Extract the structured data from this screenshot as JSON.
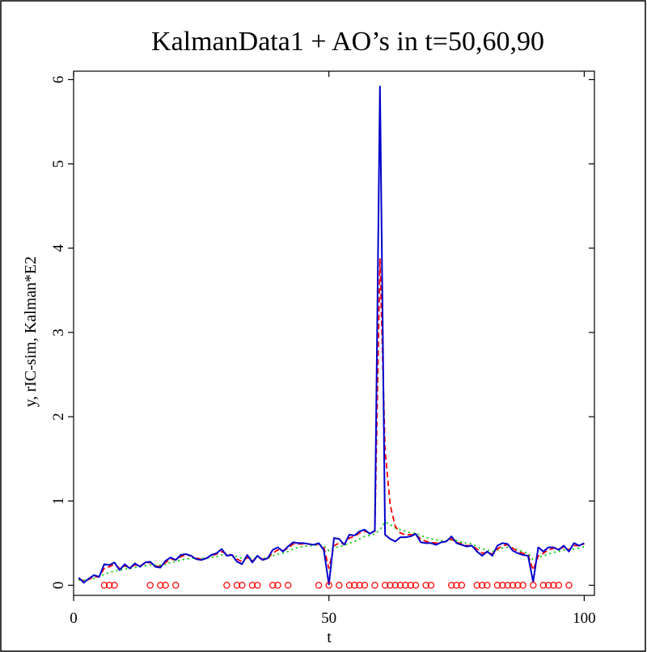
{
  "chart_data": {
    "type": "line",
    "title": "KalmanData1 + AO’s in t=50,60,90",
    "xlabel": "t",
    "ylabel": "y, rIC-sim, Kalman*E2",
    "xlim": [
      0,
      102
    ],
    "ylim": [
      -0.12,
      6.1
    ],
    "xticks": [
      0,
      50,
      100
    ],
    "yticks": [
      0,
      1,
      2,
      3,
      4,
      5,
      6
    ],
    "grid": false,
    "legend": "none",
    "colors": {
      "y": "#0000cc",
      "rIC": "#ff0000",
      "kalman": "#00cc00",
      "markers": "#ff0000"
    },
    "x": [
      1,
      2,
      3,
      4,
      5,
      6,
      7,
      8,
      9,
      10,
      11,
      12,
      13,
      14,
      15,
      16,
      17,
      18,
      19,
      20,
      21,
      22,
      23,
      24,
      25,
      26,
      27,
      28,
      29,
      30,
      31,
      32,
      33,
      34,
      35,
      36,
      37,
      38,
      39,
      40,
      41,
      42,
      43,
      44,
      45,
      46,
      47,
      48,
      49,
      50,
      51,
      52,
      53,
      54,
      55,
      56,
      57,
      58,
      59,
      60,
      61,
      62,
      63,
      64,
      65,
      66,
      67,
      68,
      69,
      70,
      71,
      72,
      73,
      74,
      75,
      76,
      77,
      78,
      79,
      80,
      81,
      82,
      83,
      84,
      85,
      86,
      87,
      88,
      89,
      90,
      91,
      92,
      93,
      94,
      95,
      96,
      97,
      98,
      99,
      100
    ],
    "series": [
      {
        "key": "y",
        "style": "solid",
        "values": [
          0.09,
          0.03,
          0.08,
          0.12,
          0.1,
          0.25,
          0.24,
          0.27,
          0.18,
          0.25,
          0.2,
          0.26,
          0.22,
          0.27,
          0.28,
          0.22,
          0.21,
          0.29,
          0.33,
          0.3,
          0.36,
          0.37,
          0.35,
          0.31,
          0.3,
          0.32,
          0.36,
          0.38,
          0.43,
          0.35,
          0.36,
          0.28,
          0.25,
          0.36,
          0.27,
          0.35,
          0.3,
          0.32,
          0.42,
          0.45,
          0.4,
          0.46,
          0.51,
          0.5,
          0.5,
          0.49,
          0.48,
          0.5,
          0.42,
          0.01,
          0.56,
          0.55,
          0.48,
          0.6,
          0.59,
          0.64,
          0.66,
          0.61,
          0.65,
          5.92,
          0.6,
          0.55,
          0.52,
          0.57,
          0.57,
          0.58,
          0.61,
          0.51,
          0.5,
          0.5,
          0.48,
          0.51,
          0.52,
          0.58,
          0.5,
          0.48,
          0.46,
          0.47,
          0.4,
          0.35,
          0.4,
          0.35,
          0.47,
          0.5,
          0.49,
          0.41,
          0.38,
          0.36,
          0.35,
          0.04,
          0.45,
          0.4,
          0.45,
          0.45,
          0.42,
          0.47,
          0.4,
          0.5,
          0.47,
          0.5
        ]
      },
      {
        "key": "rIC",
        "style": "dashed",
        "values": [
          0.08,
          0.05,
          0.07,
          0.1,
          0.1,
          0.2,
          0.22,
          0.25,
          0.2,
          0.23,
          0.21,
          0.24,
          0.23,
          0.26,
          0.27,
          0.23,
          0.22,
          0.27,
          0.31,
          0.3,
          0.34,
          0.36,
          0.35,
          0.32,
          0.31,
          0.32,
          0.35,
          0.37,
          0.4,
          0.37,
          0.36,
          0.31,
          0.28,
          0.33,
          0.29,
          0.33,
          0.31,
          0.32,
          0.38,
          0.42,
          0.41,
          0.44,
          0.49,
          0.49,
          0.49,
          0.49,
          0.48,
          0.49,
          0.45,
          0.2,
          0.47,
          0.5,
          0.49,
          0.56,
          0.58,
          0.62,
          0.64,
          0.62,
          0.64,
          3.88,
          1.6,
          0.95,
          0.7,
          0.62,
          0.6,
          0.6,
          0.6,
          0.55,
          0.52,
          0.51,
          0.5,
          0.51,
          0.52,
          0.55,
          0.51,
          0.49,
          0.47,
          0.47,
          0.43,
          0.38,
          0.39,
          0.37,
          0.43,
          0.47,
          0.48,
          0.44,
          0.4,
          0.38,
          0.36,
          0.18,
          0.35,
          0.38,
          0.42,
          0.44,
          0.43,
          0.45,
          0.42,
          0.47,
          0.47,
          0.49
        ]
      },
      {
        "key": "kalman",
        "style": "dotted",
        "values": [
          0.06,
          0.06,
          0.07,
          0.08,
          0.1,
          0.13,
          0.15,
          0.17,
          0.18,
          0.19,
          0.2,
          0.21,
          0.22,
          0.23,
          0.24,
          0.24,
          0.24,
          0.25,
          0.27,
          0.28,
          0.3,
          0.31,
          0.32,
          0.32,
          0.32,
          0.32,
          0.33,
          0.34,
          0.36,
          0.36,
          0.36,
          0.34,
          0.32,
          0.33,
          0.32,
          0.33,
          0.32,
          0.32,
          0.35,
          0.37,
          0.38,
          0.4,
          0.43,
          0.45,
          0.46,
          0.47,
          0.47,
          0.48,
          0.47,
          0.41,
          0.44,
          0.46,
          0.47,
          0.5,
          0.52,
          0.55,
          0.58,
          0.59,
          0.61,
          0.66,
          0.75,
          0.72,
          0.68,
          0.66,
          0.64,
          0.62,
          0.62,
          0.59,
          0.57,
          0.55,
          0.54,
          0.53,
          0.53,
          0.54,
          0.53,
          0.51,
          0.5,
          0.49,
          0.46,
          0.43,
          0.42,
          0.4,
          0.42,
          0.44,
          0.45,
          0.44,
          0.42,
          0.4,
          0.38,
          0.3,
          0.33,
          0.35,
          0.37,
          0.39,
          0.4,
          0.42,
          0.41,
          0.43,
          0.44,
          0.46
        ]
      }
    ],
    "markers": {
      "style": "open-circle",
      "y": 0,
      "x": [
        6,
        7,
        8,
        15,
        17,
        18,
        20,
        30,
        32,
        33,
        35,
        36,
        39,
        40,
        42,
        48,
        50,
        52,
        54,
        55,
        56,
        57,
        59,
        61,
        62,
        63,
        64,
        65,
        66,
        67,
        69,
        70,
        74,
        75,
        76,
        79,
        80,
        81,
        83,
        84,
        85,
        86,
        87,
        88,
        90,
        92,
        93,
        94,
        95,
        97
      ]
    }
  }
}
